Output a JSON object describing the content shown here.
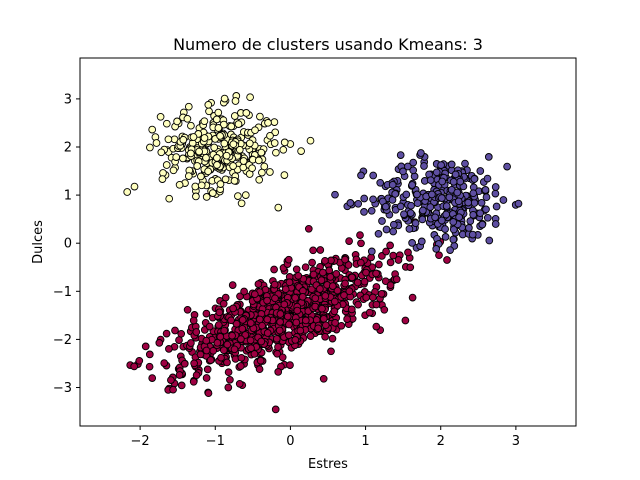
{
  "chart_data": {
    "type": "scatter",
    "title": "Numero de clusters usando Kmeans: 3",
    "xlabel": "Estres",
    "ylabel": "Dulces",
    "xlim": [
      -2.8,
      3.8
    ],
    "ylim": [
      -3.8,
      3.85
    ],
    "xticks": [
      -2,
      -1,
      0,
      1,
      2,
      3
    ],
    "yticks": [
      -3,
      -2,
      -1,
      0,
      1,
      2,
      3
    ],
    "grid": false,
    "series": [
      {
        "color": "#9e0142",
        "center": [
          -0.1,
          -1.5
        ],
        "count": 900,
        "note_shape": "elongated"
      },
      {
        "color": "#5e4fa2",
        "center": [
          2.0,
          0.9
        ],
        "count": 330
      },
      {
        "color": "#ffffbf",
        "center": [
          -0.95,
          1.95
        ],
        "count": 330
      }
    ]
  }
}
